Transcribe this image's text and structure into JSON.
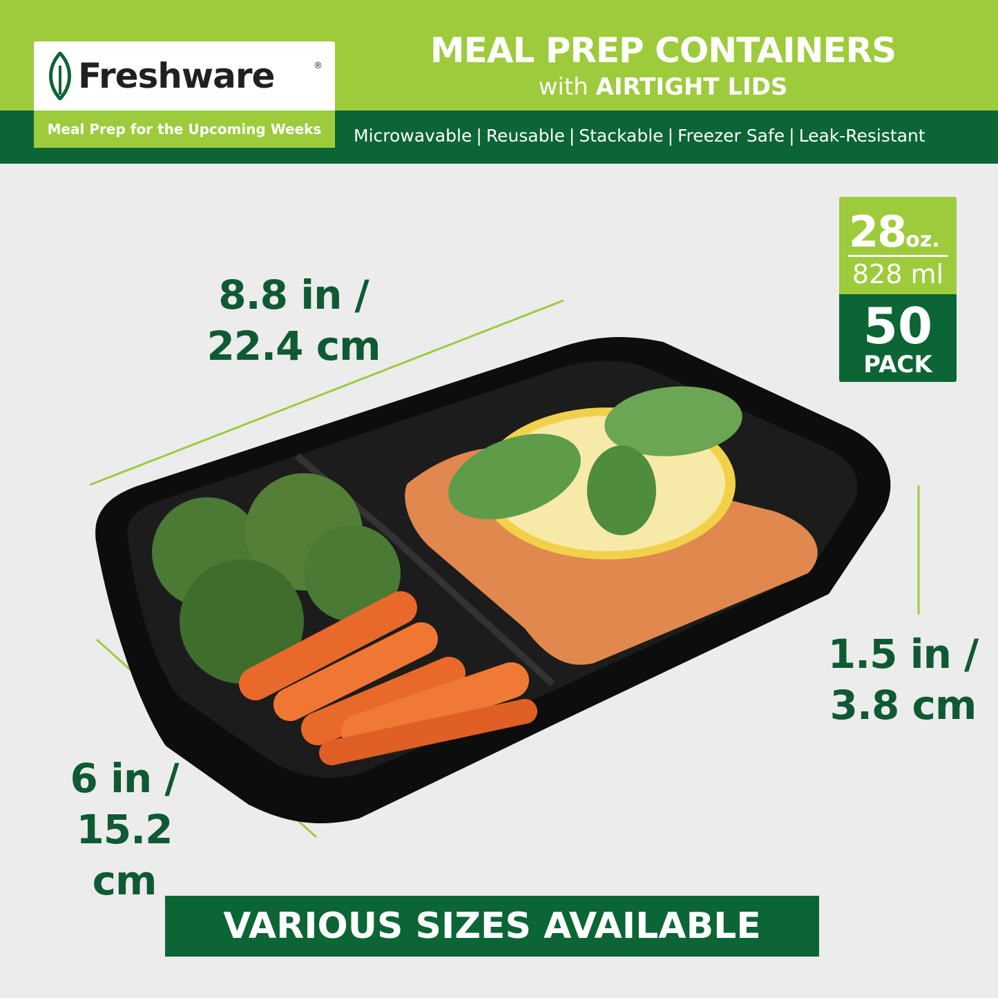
{
  "brand": {
    "name": "Freshware",
    "registered_mark": "®",
    "tagline": "Meal Prep for the Upcoming Weeks"
  },
  "header": {
    "title": "MEAL PREP CONTAINERS",
    "subtitle_prefix": "with",
    "subtitle_bold": "AIRTIGHT LIDS",
    "features": [
      "Microwavable",
      "Reusable",
      "Stackable",
      "Freezer Safe",
      "Leak-Resistant"
    ],
    "separator": "|"
  },
  "badge": {
    "capacity_oz": "28",
    "capacity_oz_unit": "oz.",
    "capacity_ml": "828 ml",
    "pack_count": "50",
    "pack_label": "PACK"
  },
  "dimensions": {
    "length": [
      "8.8 in /",
      "22.4 cm"
    ],
    "width": [
      "6 in /",
      "15.2 cm"
    ],
    "height": [
      "1.5 in /",
      "3.8 cm"
    ]
  },
  "footer": {
    "banner": "VARIOUS SIZES AVAILABLE"
  },
  "colors": {
    "light_green": "#9dcb3c",
    "dark_green": "#0b6535",
    "text_green": "#0f5a33",
    "background": "#ececec"
  }
}
